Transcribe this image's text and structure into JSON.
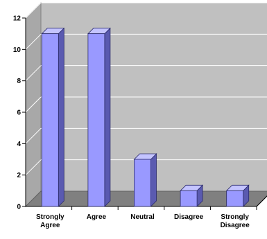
{
  "chart_data": {
    "type": "bar",
    "categories": [
      [
        "Strongly",
        "Agree"
      ],
      [
        "Agree"
      ],
      [
        "Neutral"
      ],
      [
        "Disagree"
      ],
      [
        "Strongly",
        "Disagree"
      ]
    ],
    "values": [
      11,
      11,
      3,
      1,
      1
    ],
    "ylim": [
      0,
      12
    ],
    "yticks": [
      "0",
      "2",
      "4",
      "6",
      "8",
      "10",
      "12"
    ],
    "grid": true,
    "legend": "none",
    "style": "3d"
  },
  "colors": {
    "wall": "#c0c0c0",
    "floor": "#808080",
    "gridline": "#ffffff",
    "bar_front": "#9999ff",
    "bar_top": "#c4c4ff",
    "bar_side": "#5a5ab0",
    "bar_edge": "#2a2a6a"
  }
}
